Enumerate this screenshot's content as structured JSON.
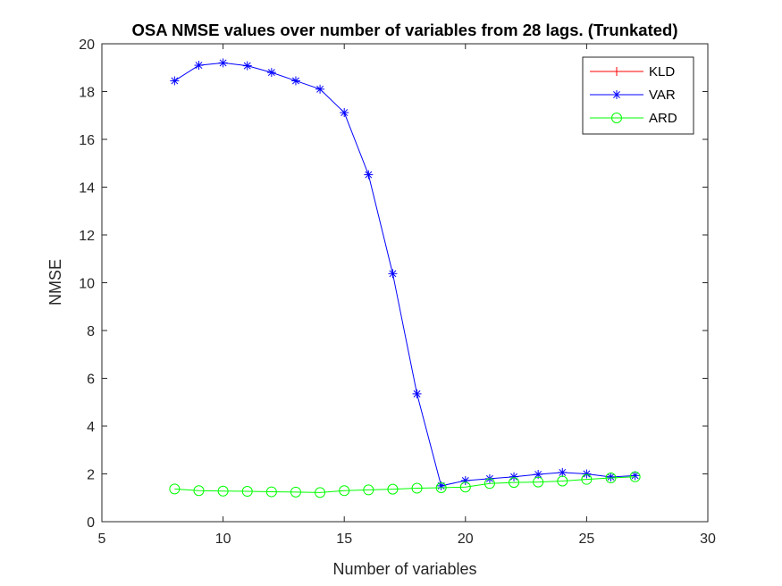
{
  "chart_data": {
    "type": "line",
    "title": "OSA NMSE values over number of variables from 28 lags. (Trunkated)",
    "xlabel": "Number of variables",
    "ylabel": "NMSE",
    "xlim": [
      5,
      30
    ],
    "ylim": [
      0,
      20
    ],
    "xticks": [
      5,
      10,
      15,
      20,
      25,
      30
    ],
    "yticks": [
      0,
      2,
      4,
      6,
      8,
      10,
      12,
      14,
      16,
      18,
      20
    ],
    "grid": false,
    "legend_position": "top-right",
    "series": [
      {
        "name": "KLD",
        "color": "#ff0000",
        "marker": "plus",
        "x": [],
        "values": []
      },
      {
        "name": "VAR",
        "color": "#0000ff",
        "marker": "asterisk",
        "x": [
          8,
          9,
          10,
          11,
          12,
          13,
          14,
          15,
          16,
          17,
          18,
          19,
          20,
          21,
          22,
          23,
          24,
          25,
          26,
          27
        ],
        "values": [
          18.45,
          19.1,
          19.2,
          19.08,
          18.8,
          18.45,
          18.1,
          17.12,
          14.52,
          10.38,
          5.35,
          1.5,
          1.72,
          1.8,
          1.88,
          1.98,
          2.06,
          2.0,
          1.87,
          1.93
        ]
      },
      {
        "name": "ARD",
        "color": "#00ff00",
        "marker": "circle",
        "x": [
          8,
          9,
          10,
          11,
          12,
          13,
          14,
          15,
          16,
          17,
          18,
          19,
          20,
          21,
          22,
          23,
          24,
          25,
          26,
          27
        ],
        "values": [
          1.37,
          1.3,
          1.28,
          1.27,
          1.25,
          1.24,
          1.22,
          1.3,
          1.33,
          1.36,
          1.4,
          1.42,
          1.45,
          1.6,
          1.64,
          1.66,
          1.7,
          1.77,
          1.83,
          1.88
        ]
      }
    ]
  }
}
